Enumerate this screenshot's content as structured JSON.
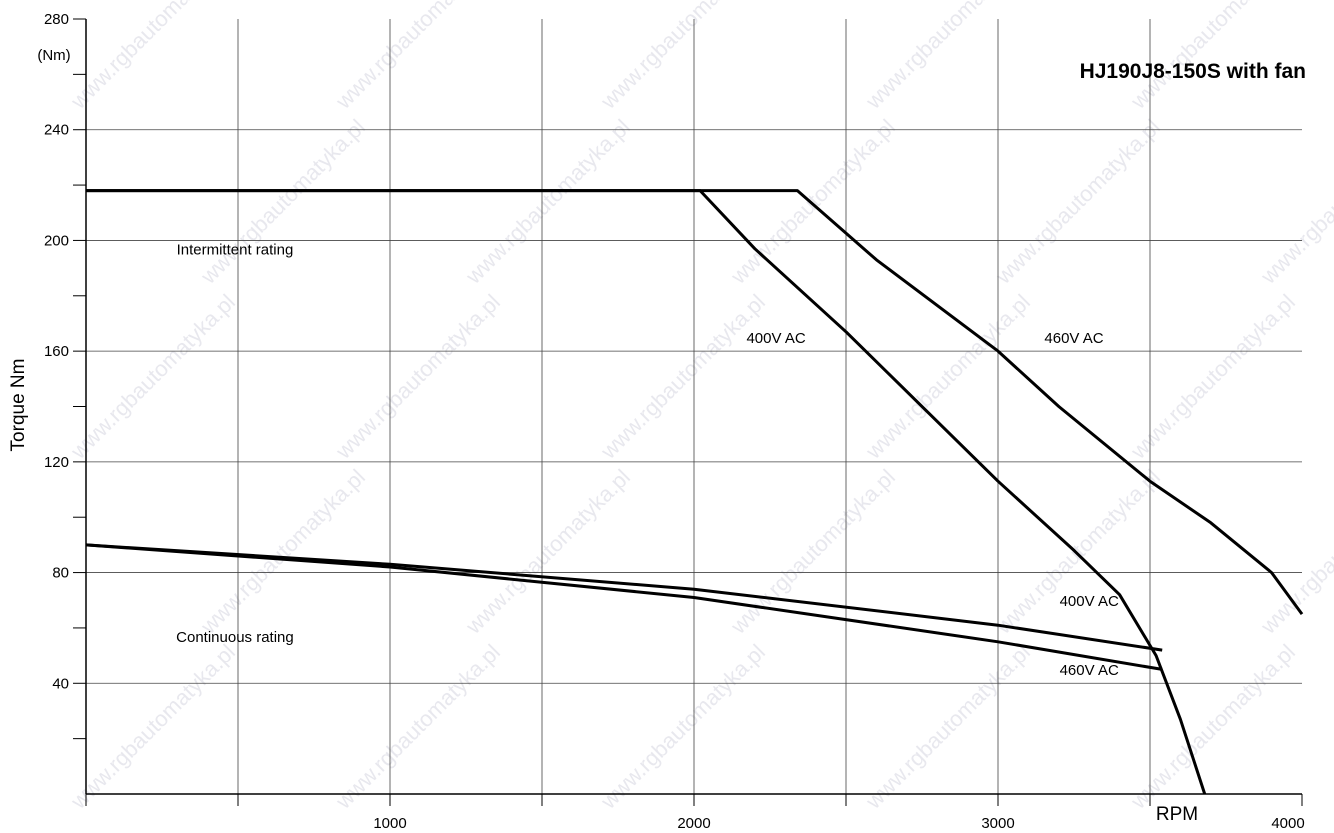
{
  "chart_data": {
    "type": "line",
    "title": "HJ190J8-150S with fan",
    "xlabel": "RPM",
    "ylabel": "Torque Nm",
    "y_unit_label": "(Nm)",
    "xlim": [
      0,
      4000
    ],
    "ylim": [
      0,
      280
    ],
    "x_ticks": [
      1000,
      2000,
      3000,
      4000
    ],
    "y_ticks": [
      40,
      80,
      120,
      160,
      200,
      240,
      280
    ],
    "grid": true,
    "series": [
      {
        "group": "Intermittent rating",
        "voltage": "400V AC",
        "points": [
          [
            0,
            218
          ],
          [
            2020,
            218
          ],
          [
            2200,
            197
          ],
          [
            2500,
            167
          ],
          [
            3000,
            113
          ],
          [
            3250,
            88
          ],
          [
            3400,
            72
          ],
          [
            3520,
            50
          ],
          [
            3600,
            27
          ],
          [
            3680,
            0
          ]
        ]
      },
      {
        "group": "Intermittent rating",
        "voltage": "460V AC",
        "points": [
          [
            0,
            218
          ],
          [
            2340,
            218
          ],
          [
            2600,
            193
          ],
          [
            3000,
            160
          ],
          [
            3200,
            140
          ],
          [
            3500,
            113
          ],
          [
            3700,
            98
          ],
          [
            3900,
            80
          ],
          [
            4000,
            65
          ]
        ]
      },
      {
        "group": "Continuous rating",
        "voltage": "400V AC",
        "points": [
          [
            0,
            90
          ],
          [
            1000,
            83
          ],
          [
            2000,
            74
          ],
          [
            3000,
            61
          ],
          [
            3540,
            52
          ]
        ]
      },
      {
        "group": "Continuous rating",
        "voltage": "460V AC",
        "points": [
          [
            0,
            90
          ],
          [
            1000,
            82
          ],
          [
            2000,
            71
          ],
          [
            3000,
            55
          ],
          [
            3540,
            45
          ]
        ]
      }
    ],
    "annotations": [
      {
        "text": "Intermittent rating",
        "x": 490,
        "y": 195
      },
      {
        "text": "Continuous rating",
        "x": 490,
        "y": 55
      },
      {
        "text": "400V AC",
        "x": 2270,
        "y": 163
      },
      {
        "text": "460V AC",
        "x": 3250,
        "y": 163
      },
      {
        "text": "400V AC",
        "x": 3300,
        "y": 68
      },
      {
        "text": "460V AC",
        "x": 3300,
        "y": 43
      }
    ],
    "watermark": "www.rgbautomatyka.pl"
  }
}
